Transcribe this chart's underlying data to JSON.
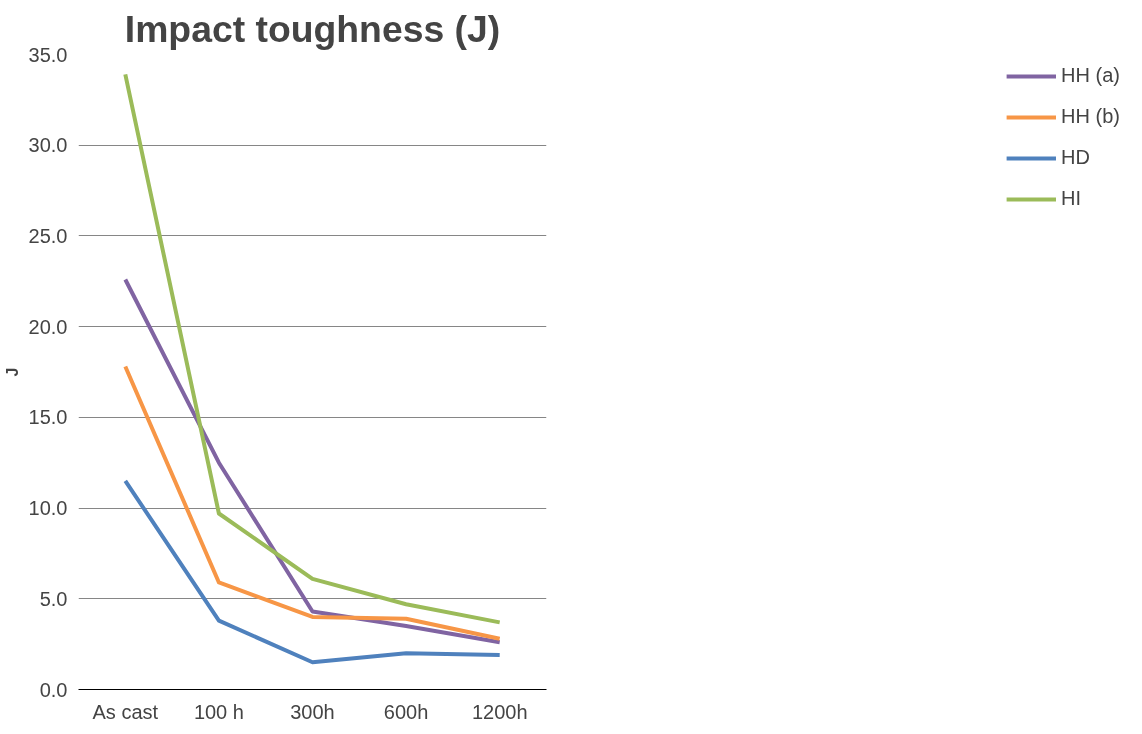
{
  "chart_data": {
    "type": "line",
    "title": "Impact toughness (J)",
    "ylabel": "J",
    "categories": [
      "As cast",
      "100 h",
      "300h",
      "600h",
      "1200h"
    ],
    "series": [
      {
        "name": "HH (a)",
        "color": "#8064a2",
        "values": [
          22.6,
          12.5,
          4.3,
          3.5,
          2.6
        ]
      },
      {
        "name": "HH (b)",
        "color": "#f79646",
        "values": [
          17.8,
          5.9,
          4.0,
          3.9,
          2.8
        ]
      },
      {
        "name": "HD",
        "color": "#4f81bd",
        "values": [
          11.5,
          3.8,
          1.5,
          2.0,
          1.9
        ]
      },
      {
        "name": "HI",
        "color": "#9bbb59",
        "values": [
          33.9,
          9.7,
          6.1,
          4.7,
          3.7
        ]
      }
    ],
    "ylim": [
      0,
      35
    ],
    "yticks": [
      {
        "value": 0,
        "label": "0.0"
      },
      {
        "value": 5,
        "label": "5.0"
      },
      {
        "value": 10,
        "label": "10.0"
      },
      {
        "value": 15,
        "label": "15.0"
      },
      {
        "value": 20,
        "label": "20.0"
      },
      {
        "value": 25,
        "label": "25.0"
      },
      {
        "value": 30,
        "label": "30.0"
      },
      {
        "value": 35,
        "label": "35.0"
      }
    ],
    "grid": "y",
    "legend": "right",
    "marker": "none",
    "line_style": "solid"
  }
}
